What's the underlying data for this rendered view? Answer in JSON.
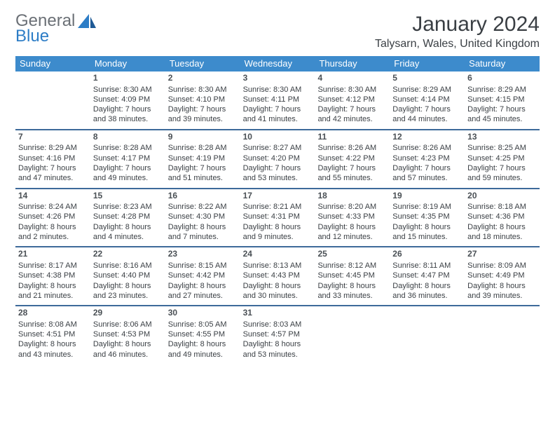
{
  "logo": {
    "text1": "General",
    "text2": "Blue"
  },
  "title": "January 2024",
  "location": "Talysarn, Wales, United Kingdom",
  "colors": {
    "header_bg": "#3d8bcc",
    "header_text": "#ffffff",
    "rule": "#3d6a9a",
    "body_text": "#3a3f44",
    "logo_gray": "#6b7076",
    "logo_blue": "#2d7dc6",
    "page_bg": "#ffffff"
  },
  "typography": {
    "title_fontsize": 30,
    "location_fontsize": 16,
    "dayheader_fontsize": 13,
    "cell_fontsize": 11,
    "logo_fontsize": 24
  },
  "day_names": [
    "Sunday",
    "Monday",
    "Tuesday",
    "Wednesday",
    "Thursday",
    "Friday",
    "Saturday"
  ],
  "weeks": [
    [
      null,
      {
        "n": "1",
        "sunrise": "Sunrise: 8:30 AM",
        "sunset": "Sunset: 4:09 PM",
        "daylight": "Daylight: 7 hours and 38 minutes."
      },
      {
        "n": "2",
        "sunrise": "Sunrise: 8:30 AM",
        "sunset": "Sunset: 4:10 PM",
        "daylight": "Daylight: 7 hours and 39 minutes."
      },
      {
        "n": "3",
        "sunrise": "Sunrise: 8:30 AM",
        "sunset": "Sunset: 4:11 PM",
        "daylight": "Daylight: 7 hours and 41 minutes."
      },
      {
        "n": "4",
        "sunrise": "Sunrise: 8:30 AM",
        "sunset": "Sunset: 4:12 PM",
        "daylight": "Daylight: 7 hours and 42 minutes."
      },
      {
        "n": "5",
        "sunrise": "Sunrise: 8:29 AM",
        "sunset": "Sunset: 4:14 PM",
        "daylight": "Daylight: 7 hours and 44 minutes."
      },
      {
        "n": "6",
        "sunrise": "Sunrise: 8:29 AM",
        "sunset": "Sunset: 4:15 PM",
        "daylight": "Daylight: 7 hours and 45 minutes."
      }
    ],
    [
      {
        "n": "7",
        "sunrise": "Sunrise: 8:29 AM",
        "sunset": "Sunset: 4:16 PM",
        "daylight": "Daylight: 7 hours and 47 minutes."
      },
      {
        "n": "8",
        "sunrise": "Sunrise: 8:28 AM",
        "sunset": "Sunset: 4:17 PM",
        "daylight": "Daylight: 7 hours and 49 minutes."
      },
      {
        "n": "9",
        "sunrise": "Sunrise: 8:28 AM",
        "sunset": "Sunset: 4:19 PM",
        "daylight": "Daylight: 7 hours and 51 minutes."
      },
      {
        "n": "10",
        "sunrise": "Sunrise: 8:27 AM",
        "sunset": "Sunset: 4:20 PM",
        "daylight": "Daylight: 7 hours and 53 minutes."
      },
      {
        "n": "11",
        "sunrise": "Sunrise: 8:26 AM",
        "sunset": "Sunset: 4:22 PM",
        "daylight": "Daylight: 7 hours and 55 minutes."
      },
      {
        "n": "12",
        "sunrise": "Sunrise: 8:26 AM",
        "sunset": "Sunset: 4:23 PM",
        "daylight": "Daylight: 7 hours and 57 minutes."
      },
      {
        "n": "13",
        "sunrise": "Sunrise: 8:25 AM",
        "sunset": "Sunset: 4:25 PM",
        "daylight": "Daylight: 7 hours and 59 minutes."
      }
    ],
    [
      {
        "n": "14",
        "sunrise": "Sunrise: 8:24 AM",
        "sunset": "Sunset: 4:26 PM",
        "daylight": "Daylight: 8 hours and 2 minutes."
      },
      {
        "n": "15",
        "sunrise": "Sunrise: 8:23 AM",
        "sunset": "Sunset: 4:28 PM",
        "daylight": "Daylight: 8 hours and 4 minutes."
      },
      {
        "n": "16",
        "sunrise": "Sunrise: 8:22 AM",
        "sunset": "Sunset: 4:30 PM",
        "daylight": "Daylight: 8 hours and 7 minutes."
      },
      {
        "n": "17",
        "sunrise": "Sunrise: 8:21 AM",
        "sunset": "Sunset: 4:31 PM",
        "daylight": "Daylight: 8 hours and 9 minutes."
      },
      {
        "n": "18",
        "sunrise": "Sunrise: 8:20 AM",
        "sunset": "Sunset: 4:33 PM",
        "daylight": "Daylight: 8 hours and 12 minutes."
      },
      {
        "n": "19",
        "sunrise": "Sunrise: 8:19 AM",
        "sunset": "Sunset: 4:35 PM",
        "daylight": "Daylight: 8 hours and 15 minutes."
      },
      {
        "n": "20",
        "sunrise": "Sunrise: 8:18 AM",
        "sunset": "Sunset: 4:36 PM",
        "daylight": "Daylight: 8 hours and 18 minutes."
      }
    ],
    [
      {
        "n": "21",
        "sunrise": "Sunrise: 8:17 AM",
        "sunset": "Sunset: 4:38 PM",
        "daylight": "Daylight: 8 hours and 21 minutes."
      },
      {
        "n": "22",
        "sunrise": "Sunrise: 8:16 AM",
        "sunset": "Sunset: 4:40 PM",
        "daylight": "Daylight: 8 hours and 23 minutes."
      },
      {
        "n": "23",
        "sunrise": "Sunrise: 8:15 AM",
        "sunset": "Sunset: 4:42 PM",
        "daylight": "Daylight: 8 hours and 27 minutes."
      },
      {
        "n": "24",
        "sunrise": "Sunrise: 8:13 AM",
        "sunset": "Sunset: 4:43 PM",
        "daylight": "Daylight: 8 hours and 30 minutes."
      },
      {
        "n": "25",
        "sunrise": "Sunrise: 8:12 AM",
        "sunset": "Sunset: 4:45 PM",
        "daylight": "Daylight: 8 hours and 33 minutes."
      },
      {
        "n": "26",
        "sunrise": "Sunrise: 8:11 AM",
        "sunset": "Sunset: 4:47 PM",
        "daylight": "Daylight: 8 hours and 36 minutes."
      },
      {
        "n": "27",
        "sunrise": "Sunrise: 8:09 AM",
        "sunset": "Sunset: 4:49 PM",
        "daylight": "Daylight: 8 hours and 39 minutes."
      }
    ],
    [
      {
        "n": "28",
        "sunrise": "Sunrise: 8:08 AM",
        "sunset": "Sunset: 4:51 PM",
        "daylight": "Daylight: 8 hours and 43 minutes."
      },
      {
        "n": "29",
        "sunrise": "Sunrise: 8:06 AM",
        "sunset": "Sunset: 4:53 PM",
        "daylight": "Daylight: 8 hours and 46 minutes."
      },
      {
        "n": "30",
        "sunrise": "Sunrise: 8:05 AM",
        "sunset": "Sunset: 4:55 PM",
        "daylight": "Daylight: 8 hours and 49 minutes."
      },
      {
        "n": "31",
        "sunrise": "Sunrise: 8:03 AM",
        "sunset": "Sunset: 4:57 PM",
        "daylight": "Daylight: 8 hours and 53 minutes."
      },
      null,
      null,
      null
    ]
  ]
}
